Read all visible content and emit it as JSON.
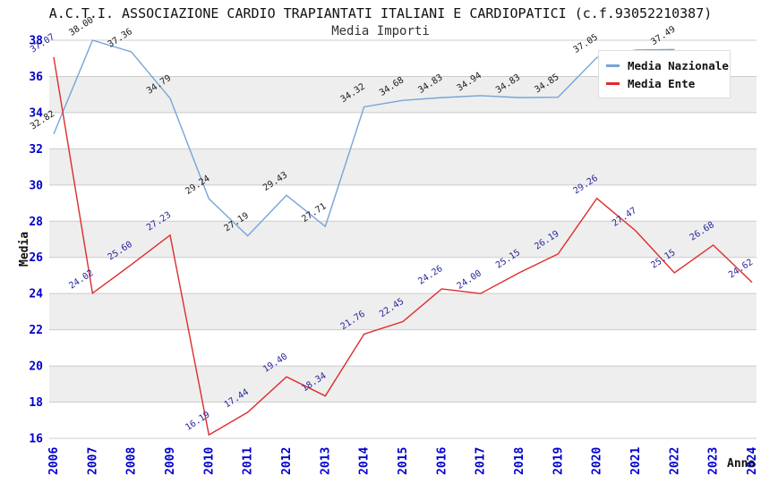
{
  "chart_data": {
    "type": "line",
    "title": "A.C.T.I. ASSOCIAZIONE CARDIO TRAPIANTATI ITALIANI E CARDIOPATICI (c.f.93052210387)",
    "subtitle": "Media Importi",
    "xlabel": "Anno",
    "ylabel": "Media",
    "x": [
      "2006",
      "2007",
      "2008",
      "2009",
      "2010",
      "2011",
      "2012",
      "2013",
      "2014",
      "2015",
      "2016",
      "2017",
      "2018",
      "2019",
      "2020",
      "2021",
      "2022",
      "2023",
      "2024"
    ],
    "ylim": [
      16,
      38
    ],
    "ytick_step": 2,
    "grid": "horizontal-bands",
    "legend_position": "top-right",
    "colors": {
      "grid": "#CCCCCC",
      "band": "#EEEEEE",
      "axis_tick": "#0000CD",
      "title_text": "#111111"
    },
    "series": [
      {
        "name": "Media Nazionale",
        "color": "#76A4D8",
        "label_color": "#1A1A1A",
        "x": [
          "2006",
          "2007",
          "2008",
          "2009",
          "2010",
          "2011",
          "2012",
          "2013",
          "2014",
          "2015",
          "2016",
          "2017",
          "2018",
          "2019",
          "2020",
          "2021",
          "2022"
        ],
        "values": [
          32.82,
          38.0,
          37.36,
          34.79,
          29.24,
          27.19,
          29.43,
          27.71,
          34.32,
          34.68,
          34.83,
          34.94,
          34.83,
          34.85,
          37.05,
          37.46,
          37.49
        ],
        "hidden_labels": [
          "2021"
        ]
      },
      {
        "name": "Media Ente",
        "color": "#DE2B2B",
        "label_color": "#26269C",
        "x": [
          "2006",
          "2007",
          "2008",
          "2009",
          "2010",
          "2011",
          "2012",
          "2013",
          "2014",
          "2015",
          "2016",
          "2017",
          "2018",
          "2019",
          "2020",
          "2021",
          "2022",
          "2023",
          "2024"
        ],
        "values": [
          37.07,
          24.02,
          25.6,
          27.23,
          16.19,
          17.44,
          19.4,
          18.34,
          21.76,
          22.45,
          24.26,
          24.0,
          25.15,
          26.19,
          29.26,
          27.47,
          25.15,
          26.68,
          24.62
        ],
        "hidden_labels": []
      }
    ]
  }
}
